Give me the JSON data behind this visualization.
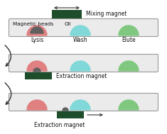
{
  "fig_width": 2.35,
  "fig_height": 1.89,
  "dpi": 100,
  "bg_color": "#ffffff",
  "panel_bg": "#ebebeb",
  "panel_border": "#999999",
  "magnet_color": "#1e4d2b",
  "arrow_color": "#333333",
  "lysis_pink": "#e08080",
  "lysis_bead": "#606060",
  "wash_cyan": "#80d8d8",
  "elute_green": "#80c880",
  "text_color": "#111111",
  "label_beads": "Magnetic beads",
  "label_oil": "Oil",
  "label_lysis": "Lysis",
  "label_wash": "Wash",
  "label_elute": "Elute",
  "label_mixing": "Mixing magnet",
  "label_extraction": "Extraction magnet",
  "font_size": 5.5,
  "small_font": 5.2
}
